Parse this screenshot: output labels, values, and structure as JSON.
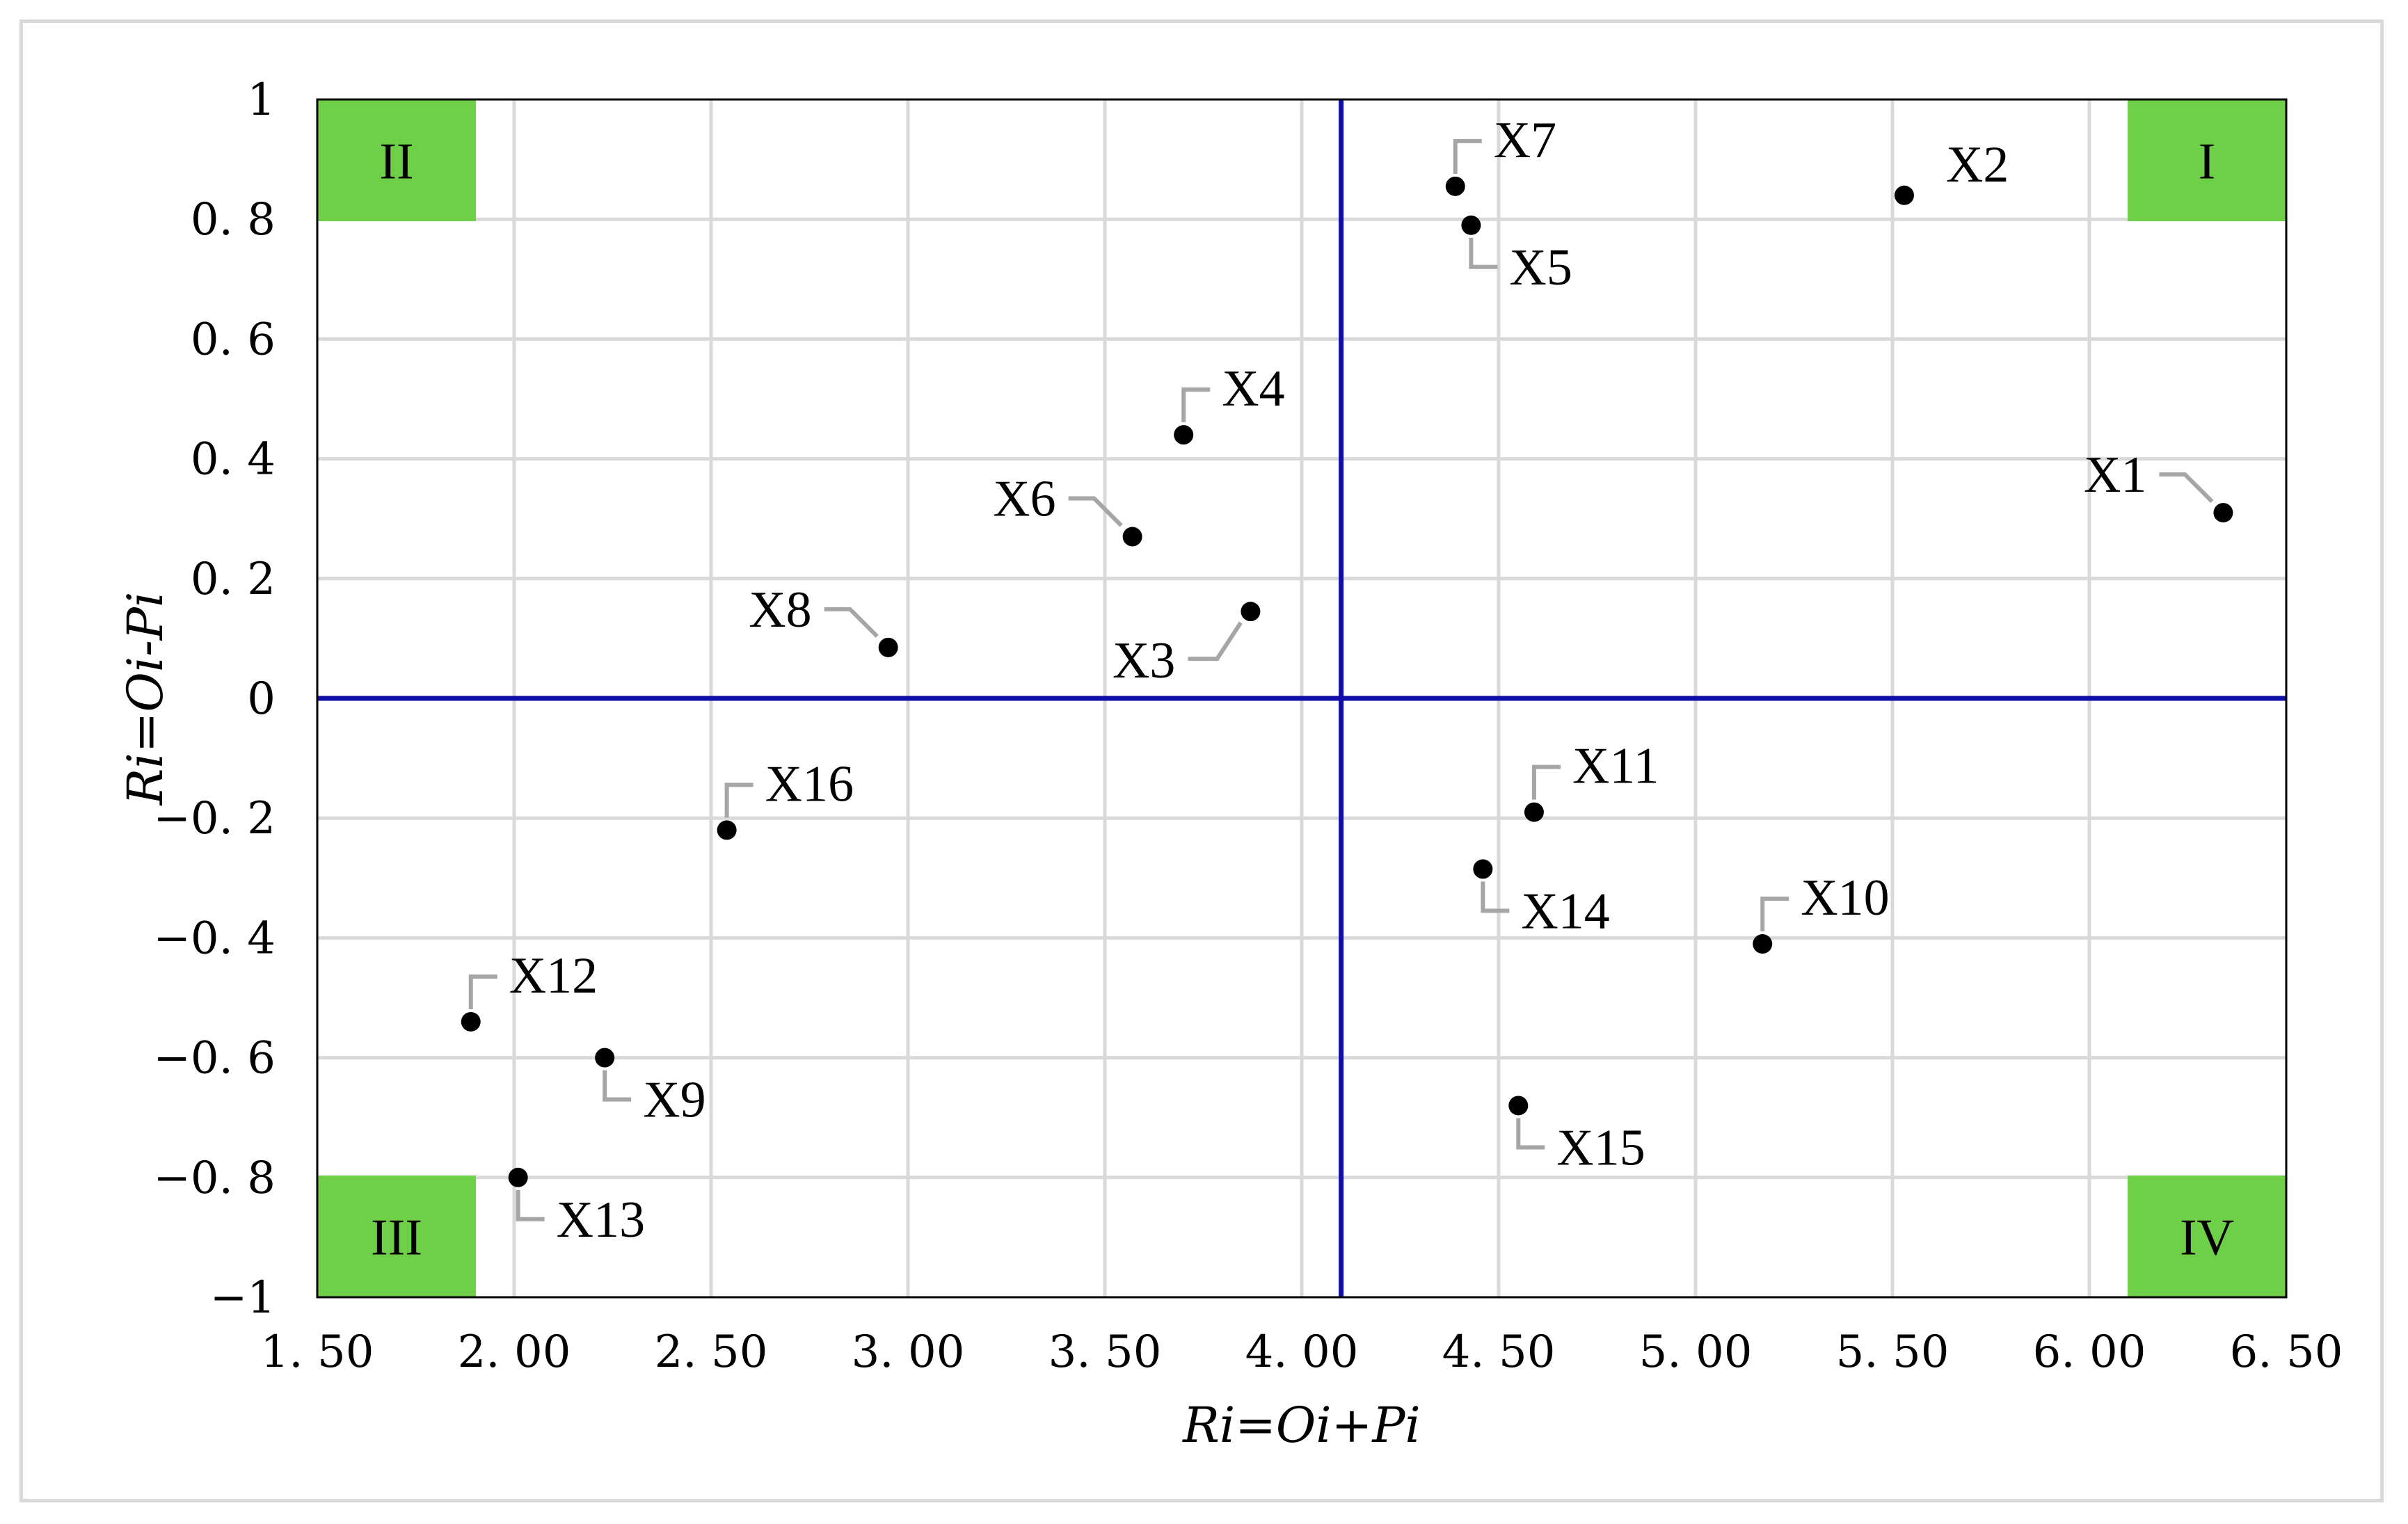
{
  "chart_data": {
    "type": "scatter",
    "title": "",
    "xlabel": "Ri=Oi+Pi",
    "ylabel": "Ri=Oi-Pi",
    "xlim": [
      1.5,
      6.5
    ],
    "ylim": [
      -1,
      1
    ],
    "x_ticks": [
      1.5,
      2.0,
      2.5,
      3.0,
      3.5,
      4.0,
      4.5,
      5.0,
      5.5,
      6.0,
      6.5
    ],
    "x_tick_labels": [
      "1. 50",
      "2. 00",
      "2. 50",
      "3. 00",
      "3. 50",
      "4. 00",
      "4. 50",
      "5. 00",
      "5. 50",
      "6. 00",
      "6. 50"
    ],
    "y_ticks": [
      1,
      0.8,
      0.6,
      0.4,
      0.2,
      0,
      -0.2,
      -0.4,
      -0.6,
      -0.8,
      -1
    ],
    "y_tick_labels": [
      "1",
      "0. 8",
      "0. 6",
      "0. 4",
      "0. 2",
      "0",
      "−0. 2",
      "−0. 4",
      "−0. 6",
      "−0. 8",
      "−1"
    ],
    "grid": true,
    "dividers": {
      "x": 4.1,
      "y": 0
    },
    "colors": {
      "divider": "#0f0fa8",
      "quadrant": "#6ecf48",
      "grid": "#d9d9d9",
      "point": "#000000",
      "leader": "#a6a6a6"
    },
    "quadrants": [
      {
        "label": "II",
        "corner": "top-left"
      },
      {
        "label": "I",
        "corner": "top-right"
      },
      {
        "label": "III",
        "corner": "bottom-left"
      },
      {
        "label": "IV",
        "corner": "bottom-right"
      }
    ],
    "points": [
      {
        "label": "X1",
        "x": 6.34,
        "y": 0.31,
        "label_pos": "upper-left"
      },
      {
        "label": "X2",
        "x": 5.53,
        "y": 0.84,
        "label_pos": "right"
      },
      {
        "label": "X3",
        "x": 3.87,
        "y": 0.145,
        "label_pos": "lower-left"
      },
      {
        "label": "X4",
        "x": 3.7,
        "y": 0.44,
        "label_pos": "upper-right"
      },
      {
        "label": "X5",
        "x": 4.43,
        "y": 0.79,
        "label_pos": "lower-right"
      },
      {
        "label": "X6",
        "x": 3.57,
        "y": 0.27,
        "label_pos": "upper-left"
      },
      {
        "label": "X7",
        "x": 4.39,
        "y": 0.855,
        "label_pos": "upper-right"
      },
      {
        "label": "X8",
        "x": 2.95,
        "y": 0.085,
        "label_pos": "upper-left"
      },
      {
        "label": "X9",
        "x": 2.23,
        "y": -0.6,
        "label_pos": "lower-right"
      },
      {
        "label": "X10",
        "x": 5.17,
        "y": -0.41,
        "label_pos": "upper-right"
      },
      {
        "label": "X11",
        "x": 4.59,
        "y": -0.19,
        "label_pos": "upper-right"
      },
      {
        "label": "X12",
        "x": 1.89,
        "y": -0.54,
        "label_pos": "upper-right"
      },
      {
        "label": "X13",
        "x": 2.01,
        "y": -0.8,
        "label_pos": "lower-right"
      },
      {
        "label": "X14",
        "x": 4.46,
        "y": -0.285,
        "label_pos": "lower-right"
      },
      {
        "label": "X15",
        "x": 4.55,
        "y": -0.68,
        "label_pos": "lower-right"
      },
      {
        "label": "X16",
        "x": 2.54,
        "y": -0.22,
        "label_pos": "upper-right"
      }
    ]
  }
}
